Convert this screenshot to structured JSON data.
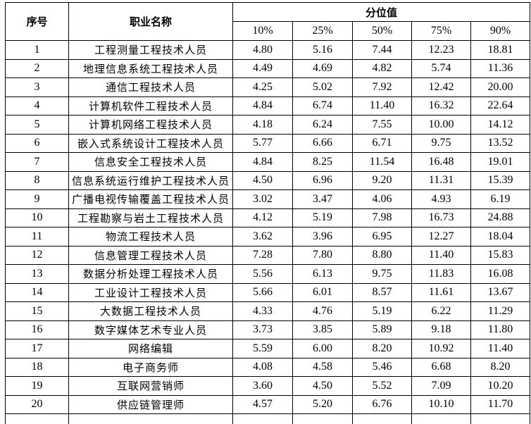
{
  "table": {
    "headers": {
      "col_index": "序号",
      "col_occupation": "职业名称",
      "col_percentile_group": "分位值",
      "percentiles": [
        "10%",
        "25%",
        "50%",
        "75%",
        "90%"
      ]
    },
    "rows": [
      {
        "index": "1",
        "occupation": "工程测量工程技术人员",
        "values": [
          "4.80",
          "5.16",
          "7.44",
          "12.23",
          "18.81"
        ]
      },
      {
        "index": "2",
        "occupation": "地理信息系统工程技术人员",
        "values": [
          "4.49",
          "4.69",
          "4.82",
          "5.74",
          "11.36"
        ]
      },
      {
        "index": "3",
        "occupation": "通信工程技术人员",
        "values": [
          "4.25",
          "5.02",
          "7.92",
          "12.42",
          "20.00"
        ]
      },
      {
        "index": "4",
        "occupation": "计算机软件工程技术人员",
        "values": [
          "4.84",
          "6.74",
          "11.40",
          "16.32",
          "22.64"
        ]
      },
      {
        "index": "5",
        "occupation": "计算机网络工程技术人员",
        "values": [
          "4.18",
          "6.24",
          "7.55",
          "10.00",
          "14.12"
        ]
      },
      {
        "index": "6",
        "occupation": "嵌入式系统设计工程技术人员",
        "values": [
          "5.77",
          "6.66",
          "6.71",
          "9.75",
          "13.52"
        ]
      },
      {
        "index": "7",
        "occupation": "信息安全工程技术人员",
        "values": [
          "4.84",
          "8.25",
          "11.54",
          "16.48",
          "19.01"
        ]
      },
      {
        "index": "8",
        "occupation": "信息系统运行维护工程技术人员",
        "values": [
          "4.50",
          "6.96",
          "9.20",
          "11.31",
          "15.39"
        ]
      },
      {
        "index": "9",
        "occupation": "广播电视传输覆盖工程技术人员",
        "values": [
          "3.02",
          "3.47",
          "4.06",
          "4.93",
          "6.19"
        ]
      },
      {
        "index": "10",
        "occupation": "工程勘察与岩土工程技术人员",
        "values": [
          "4.12",
          "5.19",
          "7.98",
          "16.73",
          "24.88"
        ]
      },
      {
        "index": "11",
        "occupation": "物流工程技术人员",
        "values": [
          "3.62",
          "3.96",
          "6.95",
          "12.27",
          "18.04"
        ]
      },
      {
        "index": "12",
        "occupation": "信息管理工程技术人员",
        "values": [
          "7.28",
          "7.80",
          "8.80",
          "11.40",
          "15.83"
        ]
      },
      {
        "index": "13",
        "occupation": "数据分析处理工程技术人员",
        "values": [
          "5.56",
          "6.13",
          "9.75",
          "11.83",
          "16.08"
        ]
      },
      {
        "index": "14",
        "occupation": "工业设计工程技术人员",
        "values": [
          "5.66",
          "6.01",
          "8.57",
          "11.61",
          "13.67"
        ]
      },
      {
        "index": "15",
        "occupation": "大数据工程技术人员",
        "values": [
          "4.33",
          "4.76",
          "5.19",
          "6.22",
          "11.29"
        ]
      },
      {
        "index": "16",
        "occupation": "数字媒体艺术专业人员",
        "values": [
          "3.73",
          "3.85",
          "5.89",
          "9.18",
          "11.80"
        ]
      },
      {
        "index": "17",
        "occupation": "网络编辑",
        "values": [
          "5.59",
          "6.00",
          "8.20",
          "10.92",
          "11.40"
        ]
      },
      {
        "index": "18",
        "occupation": "电子商务师",
        "values": [
          "4.08",
          "4.58",
          "5.46",
          "6.68",
          "8.20"
        ]
      },
      {
        "index": "19",
        "occupation": "互联网营销师",
        "values": [
          "3.60",
          "4.50",
          "5.52",
          "7.09",
          "10.20"
        ]
      },
      {
        "index": "20",
        "occupation": "供应链管理师",
        "values": [
          "4.57",
          "5.20",
          "6.76",
          "10.10",
          "11.70"
        ]
      }
    ]
  }
}
